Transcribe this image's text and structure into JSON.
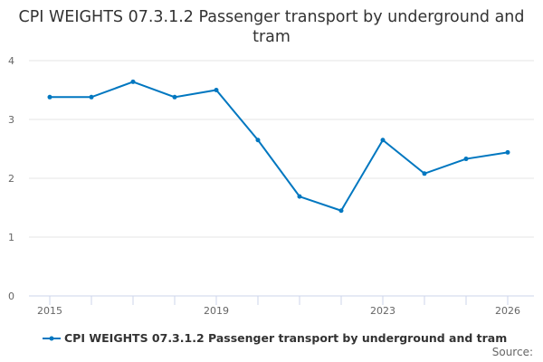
{
  "chart_data": {
    "type": "line",
    "title": "CPI WEIGHTS 07.3.1.2 Passenger transport by underground and tram",
    "xlabel": "",
    "ylabel": "",
    "x": [
      2015,
      2016,
      2017,
      2018,
      2019,
      2020,
      2021,
      2022,
      2023,
      2024,
      2025,
      2026
    ],
    "x_tick_labels": [
      "2015",
      "2019",
      "2023",
      "2026"
    ],
    "y_tick_labels": [
      "0",
      "1",
      "2",
      "3",
      "4"
    ],
    "ylim": [
      0,
      4
    ],
    "grid": true,
    "legend_position": "bottom",
    "series": [
      {
        "name": "CPI WEIGHTS 07.3.1.2 Passenger transport by underground and tram",
        "color": "#0077c0",
        "values": [
          3.38,
          3.38,
          3.64,
          3.38,
          3.5,
          2.65,
          1.69,
          1.45,
          2.65,
          2.08,
          2.33,
          2.44
        ]
      }
    ],
    "source_label": "Source:"
  }
}
